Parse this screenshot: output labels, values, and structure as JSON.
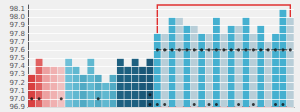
{
  "chart_data": {
    "type": "bar",
    "ylim": [
      96.9,
      98.15
    ],
    "yticks": [
      96.9,
      {
        "value": 97,
        "label": "97.0"
      },
      97.1,
      97.2,
      97.3,
      97.4,
      97.5,
      97.6,
      97.7,
      97.8,
      97.9,
      {
        "value": 98,
        "label": "98.0"
      },
      98.1
    ],
    "grid": true,
    "tick_labels": "y",
    "series": [
      {
        "type": "bar",
        "values": [
          97.3,
          97.5,
          97.4,
          97.4,
          97.4,
          97.5,
          97.4,
          97.3,
          97.5,
          97.3,
          97.2,
          97.3,
          97.5,
          97.4,
          97.5,
          97.4,
          97.5,
          97.8,
          97.8,
          98.0,
          98.0,
          97.9,
          97.9,
          97.8,
          97.8,
          98.0,
          97.8,
          97.9,
          97.9,
          98.0,
          97.8,
          97.9,
          97.7,
          97.8,
          98.1,
          98.0
        ],
        "colors": [
          "#d94040",
          "#e06060",
          "#eda0a0",
          "#f0b0b0",
          "#f0c0c0",
          "#70c0d8",
          "#60b8d0",
          "#50aac4",
          "#60b8d0",
          "#50aac4",
          "#60b8d0",
          "#50aac4",
          "#1e6080",
          "#1e6080",
          "#1e6080",
          "#1a5878",
          "#1a5878",
          "#45b0d0",
          "#b8ced8",
          "#45b0d0",
          "#b8ced8",
          "#45b0d0",
          "#b8ced8",
          "#45b0d0",
          "#b8ced8",
          "#45b0d0",
          "#b8ced8",
          "#45b0d0",
          "#b8ced8",
          "#45b0d0",
          "#b8ced8",
          "#45b0d0",
          "#b8ced8",
          "#45b0d0",
          "#45b0d0",
          "#b8ced8"
        ]
      },
      {
        "type": "scatter",
        "color": "#111111",
        "marker": "circle",
        "values": [
          97.0,
          97.0,
          null,
          null,
          97.0,
          null,
          null,
          null,
          null,
          97.0,
          null,
          null,
          null,
          null,
          null,
          null,
          97.05,
          97.6,
          97.6,
          97.6,
          97.6,
          97.6,
          97.6,
          97.6,
          97.6,
          97.6,
          97.6,
          97.6,
          97.6,
          97.6,
          97.6,
          97.6,
          97.6,
          97.6,
          97.6,
          97.6
        ]
      },
      {
        "type": "scatter",
        "color": "#111111",
        "marker": "circle",
        "values": [
          null,
          null,
          null,
          null,
          null,
          null,
          null,
          null,
          null,
          null,
          null,
          null,
          null,
          null,
          null,
          null,
          96.93,
          96.93,
          96.93,
          null,
          null,
          null,
          96.93,
          null,
          96.93,
          96.93,
          null,
          null,
          96.93,
          null,
          96.93,
          null,
          null,
          96.93,
          96.93,
          null
        ]
      },
      {
        "type": "line",
        "color": "#222222",
        "line_style": "dashed",
        "values": [
          null,
          null,
          null,
          null,
          null,
          null,
          null,
          null,
          null,
          null,
          null,
          null,
          null,
          null,
          null,
          null,
          null,
          97.6,
          97.6,
          97.6,
          97.6,
          97.6,
          97.6,
          97.6,
          97.6,
          97.6,
          97.6,
          97.6,
          97.6,
          97.6,
          97.6,
          97.6,
          97.6,
          97.6,
          97.6,
          97.6
        ]
      }
    ]
  }
}
